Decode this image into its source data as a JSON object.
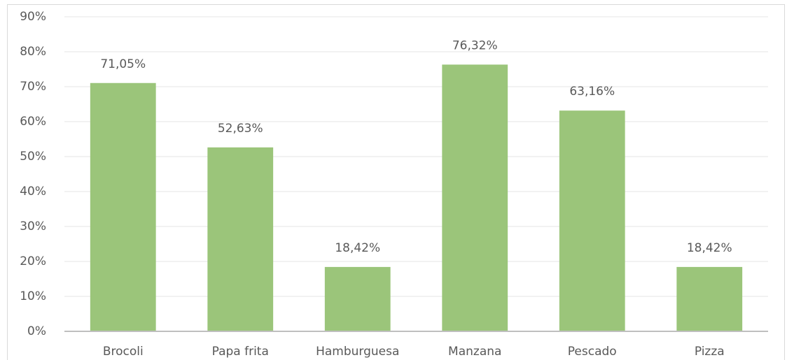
{
  "chart_data": {
    "type": "bar",
    "categories": [
      "Brocoli",
      "Papa frita",
      "Hamburguesa",
      "Manzana",
      "Pescado",
      "Pizza"
    ],
    "values": [
      71.05,
      52.63,
      18.42,
      76.32,
      63.16,
      18.42
    ],
    "value_labels": [
      "71,05%",
      "52,63%",
      "18,42%",
      "76,32%",
      "63,16%",
      "18,42%"
    ],
    "color": "#9bc57a",
    "ylim": [
      0,
      90
    ],
    "yticks": [
      {
        "value": 0,
        "label": "0%"
      },
      {
        "value": 10,
        "label": "10%"
      },
      {
        "value": 20,
        "label": "20%"
      },
      {
        "value": 30,
        "label": "30%"
      },
      {
        "value": 40,
        "label": "40%"
      },
      {
        "value": 50,
        "label": "50%"
      },
      {
        "value": 60,
        "label": "60%"
      },
      {
        "value": 70,
        "label": "70%"
      },
      {
        "value": 80,
        "label": "80%"
      },
      {
        "value": 90,
        "label": "90%"
      }
    ],
    "grid": true
  }
}
